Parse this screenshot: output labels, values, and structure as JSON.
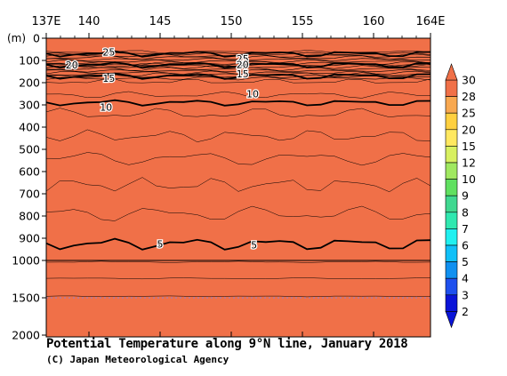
{
  "chart_data": {
    "type": "heatmap",
    "title": "Potential Temperature along 9°N line, January 2018",
    "credit": "(C) Japan Meteorological Agency",
    "y_unit_label": "(m)",
    "x_tick_labels": [
      "137E",
      "140",
      "145",
      "150",
      "155",
      "160",
      "164E"
    ],
    "x_tick_values": [
      137,
      140,
      145,
      150,
      155,
      160,
      164
    ],
    "x_range": [
      137,
      164
    ],
    "y_tick_labels": [
      "0",
      "100",
      "200",
      "300",
      "400",
      "500",
      "600",
      "700",
      "800",
      "900",
      "1000",
      "1500",
      "2000"
    ],
    "y_tick_values": [
      0,
      100,
      200,
      300,
      400,
      500,
      600,
      700,
      800,
      900,
      1000,
      1500,
      2000
    ],
    "y_range": [
      0,
      2000
    ],
    "y_axis_note": "depth axis: 0-1000 m linear, 1000-2000 m compressed",
    "colorbar_levels": [
      "2",
      "3",
      "4",
      "5",
      "6",
      "7",
      "8",
      "9",
      "10",
      "12",
      "15",
      "20",
      "25",
      "28",
      "30"
    ],
    "colorbar_colors": [
      "#0a14d8",
      "#1e50ee",
      "#1090f0",
      "#10c0f8",
      "#20f0f0",
      "#30e8b0",
      "#40d890",
      "#60e060",
      "#a0e860",
      "#d8f060",
      "#ffe860",
      "#ffd040",
      "#f8a850",
      "#f07048"
    ],
    "contour_labels": [
      "25",
      "20",
      "15",
      "25",
      "20",
      "15",
      "10",
      "10",
      "5",
      "5"
    ],
    "contour_depths_m": [
      {
        "value": 25,
        "depth": 70
      },
      {
        "value": 20,
        "depth": 120
      },
      {
        "value": 15,
        "depth": 170
      },
      {
        "value": 10,
        "depth": 290
      },
      {
        "value": 5,
        "depth": 925
      }
    ]
  }
}
